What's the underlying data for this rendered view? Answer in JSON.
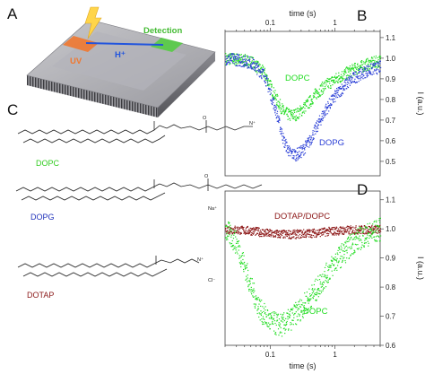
{
  "panels": {
    "a": "A",
    "b": "B",
    "c": "C",
    "d": "D"
  },
  "chip": {
    "uv": "UV",
    "h_plus": "H⁺",
    "detection": "Detection"
  },
  "lipids": [
    {
      "name": "DOPC",
      "color": "#33cc22",
      "counter_ion": ""
    },
    {
      "name": "DOPG",
      "color": "#2233bb",
      "counter_ion": "Na⁺"
    },
    {
      "name": "DOTAP",
      "color": "#8b1a1a",
      "counter_ion": "Cl⁻"
    }
  ],
  "colors": {
    "dopc": "#22dd22",
    "dopg": "#2b3fd6",
    "dotap_dopc": "#8b1515",
    "uv": "#f07830",
    "detection": "#55cc44",
    "h_plus": "#2255dd"
  },
  "chart_data": [
    {
      "type": "scatter",
      "panel": "B",
      "xlabel": "time (s)",
      "ylabel": "I (a.u.)",
      "x_scale": "log",
      "xlim": [
        0.02,
        5
      ],
      "ylim": [
        0.43,
        1.13
      ],
      "x_ticks": [
        0.1,
        1
      ],
      "x_tick_labels": [
        "0.1",
        "1"
      ],
      "y_ticks": [
        0.5,
        0.6,
        0.7,
        0.8,
        0.9,
        1.0,
        1.1
      ],
      "y_tick_labels": [
        "0.5",
        "0.6",
        "0.7",
        "0.8",
        "0.9",
        "1.0",
        "1.1"
      ],
      "x_axis_position": "top",
      "y_axis_position": "right",
      "series": [
        {
          "name": "DOPC",
          "x": [
            0.02,
            0.03,
            0.05,
            0.08,
            0.12,
            0.16,
            0.2,
            0.25,
            0.3,
            0.4,
            0.5,
            0.7,
            1,
            1.5,
            2,
            3,
            5
          ],
          "y": [
            1.0,
            0.998,
            0.985,
            0.93,
            0.81,
            0.74,
            0.725,
            0.73,
            0.75,
            0.79,
            0.83,
            0.87,
            0.9,
            0.93,
            0.95,
            0.97,
            0.99
          ],
          "spread": 0.03
        },
        {
          "name": "DOPG",
          "x": [
            0.02,
            0.03,
            0.05,
            0.08,
            0.12,
            0.16,
            0.2,
            0.25,
            0.3,
            0.4,
            0.5,
            0.7,
            1,
            1.5,
            2,
            3,
            5
          ],
          "y": [
            1.0,
            0.995,
            0.98,
            0.92,
            0.75,
            0.6,
            0.54,
            0.535,
            0.55,
            0.6,
            0.66,
            0.75,
            0.82,
            0.88,
            0.91,
            0.94,
            0.96
          ],
          "spread": 0.03
        }
      ]
    },
    {
      "type": "scatter",
      "panel": "D",
      "xlabel": "time (s)",
      "ylabel": "I (a.u.)",
      "x_scale": "log",
      "xlim": [
        0.02,
        5
      ],
      "ylim": [
        0.6,
        1.13
      ],
      "x_ticks": [
        0.1,
        1
      ],
      "x_tick_labels": [
        "0.1",
        "1"
      ],
      "y_ticks": [
        0.6,
        0.7,
        0.8,
        0.9,
        1.0,
        1.1
      ],
      "y_tick_labels": [
        "0.6",
        "0.7",
        "0.8",
        "0.9",
        "1.0",
        "1.1"
      ],
      "x_axis_position": "bottom",
      "y_axis_position": "right",
      "series": [
        {
          "name": "DOTAP/DOPC",
          "x": [
            0.02,
            0.05,
            0.1,
            0.2,
            0.5,
            1,
            2,
            5
          ],
          "y": [
            1.0,
            0.995,
            0.985,
            0.982,
            0.988,
            0.995,
            0.998,
            1.0
          ],
          "spread": 0.015
        },
        {
          "name": "DOPC",
          "x": [
            0.02,
            0.03,
            0.04,
            0.05,
            0.07,
            0.1,
            0.15,
            0.2,
            0.3,
            0.5,
            0.7,
            1,
            1.5,
            2,
            3,
            5
          ],
          "y": [
            1.0,
            0.95,
            0.87,
            0.8,
            0.72,
            0.68,
            0.67,
            0.69,
            0.73,
            0.79,
            0.84,
            0.89,
            0.93,
            0.96,
            0.98,
            1.0
          ],
          "spread": 0.04
        }
      ]
    }
  ]
}
